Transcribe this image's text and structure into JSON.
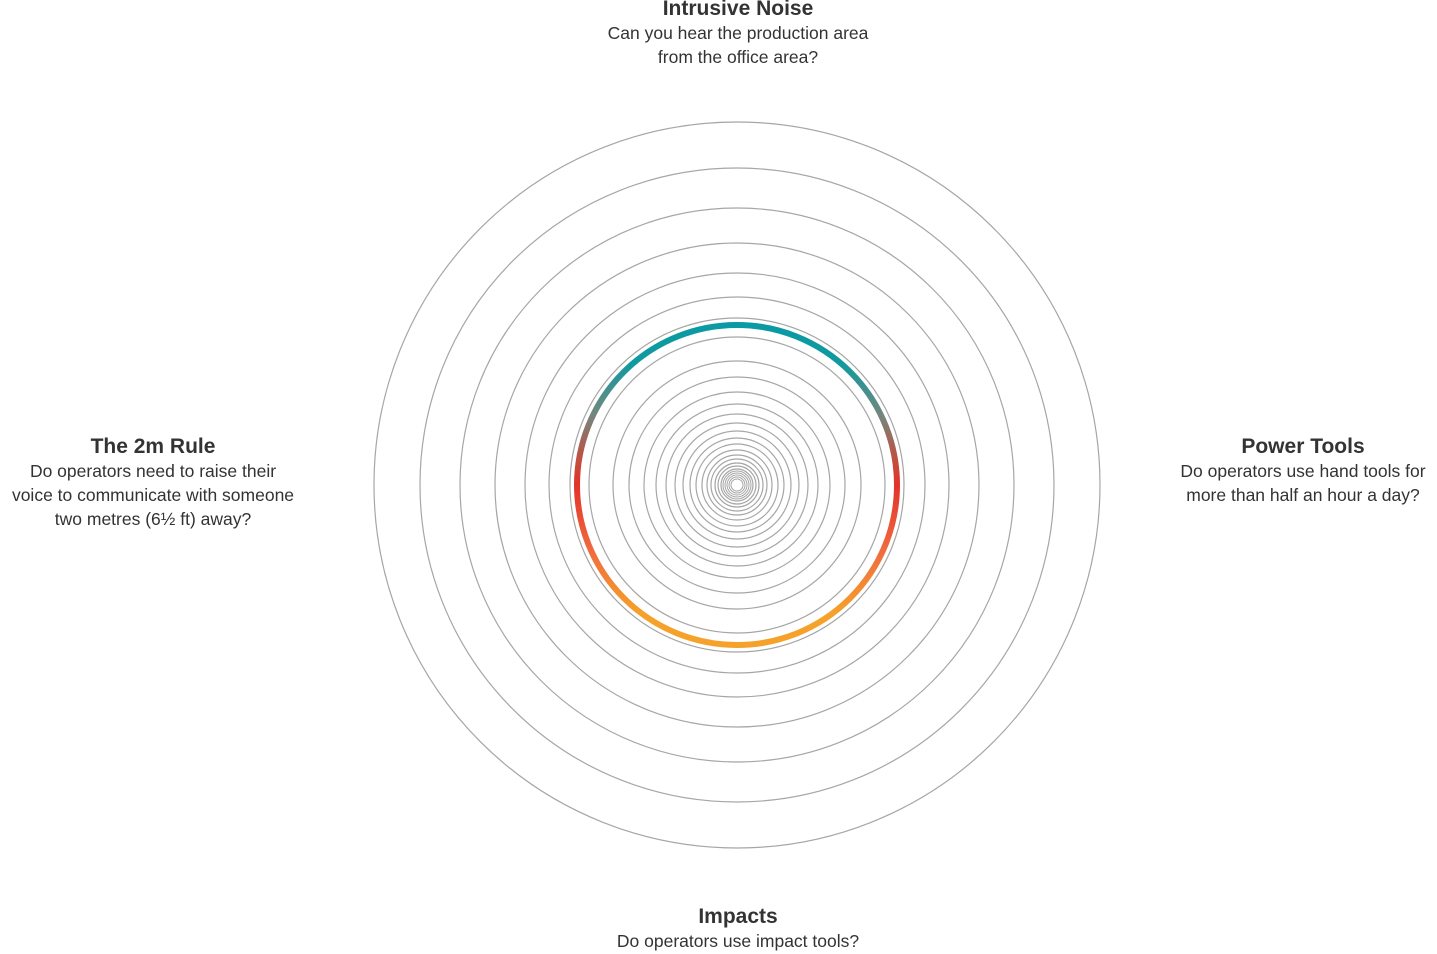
{
  "labels": {
    "top": {
      "title": "Intrusive Noise",
      "description": "Can you hear the production area\nfrom the office area?"
    },
    "right": {
      "title": "Power Tools",
      "description": "Do operators use hand tools for\nmore than half an hour a day?"
    },
    "left": {
      "title": "The 2m Rule",
      "description": "Do operators need to raise their\nvoice to communicate with someone\ntwo metres (6½ ft) away?"
    },
    "bottom": {
      "title": "Impacts",
      "description": "Do operators use impact tools?"
    }
  },
  "colors": {
    "ring_stroke": "#a6a6a6",
    "highlight_top": "#0a9aa3",
    "highlight_side": "#e3322a",
    "highlight_bottom": "#f5a12a"
  }
}
